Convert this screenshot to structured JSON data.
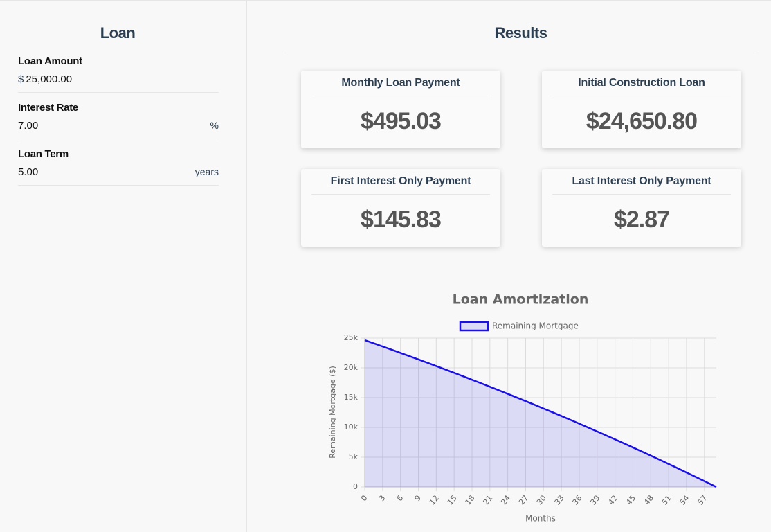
{
  "loan": {
    "title": "Loan",
    "fields": [
      {
        "label": "Loan Amount",
        "prefix": "$",
        "value": "25,000.00"
      },
      {
        "label": "Interest Rate",
        "value": "7.00",
        "suffix": "%"
      },
      {
        "label": "Loan Term",
        "value": "5.00",
        "suffix": "years"
      }
    ]
  },
  "results": {
    "title": "Results",
    "cards": [
      {
        "label": "Monthly Loan Payment",
        "value": "$495.03"
      },
      {
        "label": "Initial Construction Loan",
        "value": "$24,650.80"
      },
      {
        "label": "First Interest Only Payment",
        "value": "$145.83"
      },
      {
        "label": "Last Interest Only Payment",
        "value": "$2.87"
      }
    ]
  },
  "chart_data": {
    "type": "area",
    "title": "Loan Amortization",
    "x_label": "Months",
    "y_label": "Remaining Mortgage ($)",
    "x": [
      0,
      1,
      2,
      3,
      4,
      5,
      6,
      7,
      8,
      9,
      10,
      11,
      12,
      13,
      14,
      15,
      16,
      17,
      18,
      19,
      20,
      21,
      22,
      23,
      24,
      25,
      26,
      27,
      28,
      29,
      30,
      31,
      32,
      33,
      34,
      35,
      36,
      37,
      38,
      39,
      40,
      41,
      42,
      43,
      44,
      45,
      46,
      47,
      48,
      49,
      50,
      51,
      52,
      53,
      54,
      55,
      56,
      57,
      58,
      59
    ],
    "series": [
      {
        "name": "Remaining Mortgage",
        "color": "#1a0fe6",
        "values": [
          24651,
          24300,
          23946,
          23591,
          23234,
          22874,
          22512,
          22149,
          21783,
          21415,
          21045,
          20673,
          20298,
          19921,
          19543,
          19162,
          18778,
          18393,
          18005,
          17615,
          17223,
          16828,
          16431,
          16032,
          15631,
          15227,
          14821,
          14412,
          14001,
          13588,
          13172,
          12754,
          12333,
          11910,
          11485,
          11057,
          10626,
          10193,
          9757,
          9319,
          8879,
          8435,
          7990,
          7541,
          7090,
          6636,
          6180,
          5721,
          5259,
          4795,
          4328,
          3858,
          3386,
          2910,
          2432,
          1952,
          1468,
          981,
          492,
          0
        ]
      }
    ],
    "xlim": [
      0,
      59
    ],
    "xticks": [
      0,
      3,
      6,
      9,
      12,
      15,
      18,
      21,
      24,
      27,
      30,
      33,
      36,
      39,
      42,
      45,
      48,
      51,
      54,
      57
    ],
    "ylim": [
      0,
      25000
    ],
    "yticks": [
      0,
      {
        "value": 5000,
        "label": "5k"
      },
      {
        "value": 10000,
        "label": "10k"
      },
      {
        "value": 15000,
        "label": "15k"
      },
      {
        "value": 20000,
        "label": "20k"
      },
      {
        "value": 25000,
        "label": "25k"
      }
    ],
    "grid": true,
    "legend": "top"
  }
}
